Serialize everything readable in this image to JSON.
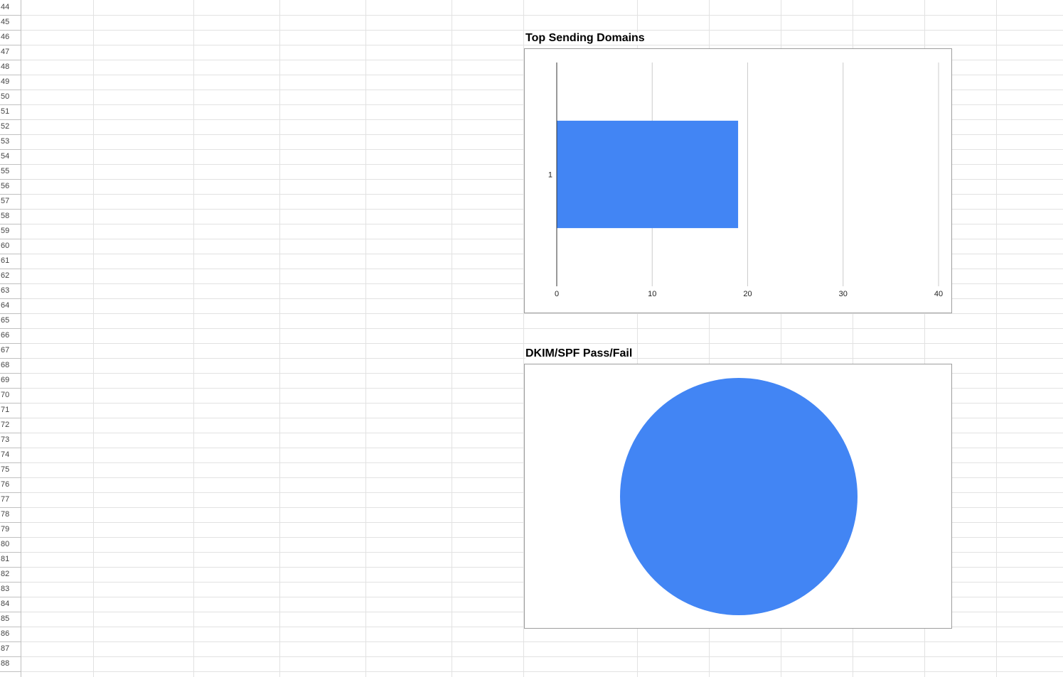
{
  "spreadsheet": {
    "first_row": 44,
    "last_row": 88
  },
  "charts": {
    "bar_title": "Top Sending Domains",
    "pie_title": "DKIM/SPF Pass/Fail"
  },
  "chart_data": [
    {
      "type": "bar",
      "orientation": "horizontal",
      "title": "Top Sending Domains",
      "categories": [
        "1"
      ],
      "values": [
        19
      ],
      "xlim": [
        0,
        40
      ],
      "xticks": [
        "0",
        "10",
        "20",
        "30",
        "40"
      ],
      "grid": true,
      "color": "#4285f4"
    },
    {
      "type": "pie",
      "title": "DKIM/SPF Pass/Fail",
      "labels": [
        ""
      ],
      "values": [
        1
      ],
      "colors": [
        "#4285f4"
      ]
    }
  ]
}
